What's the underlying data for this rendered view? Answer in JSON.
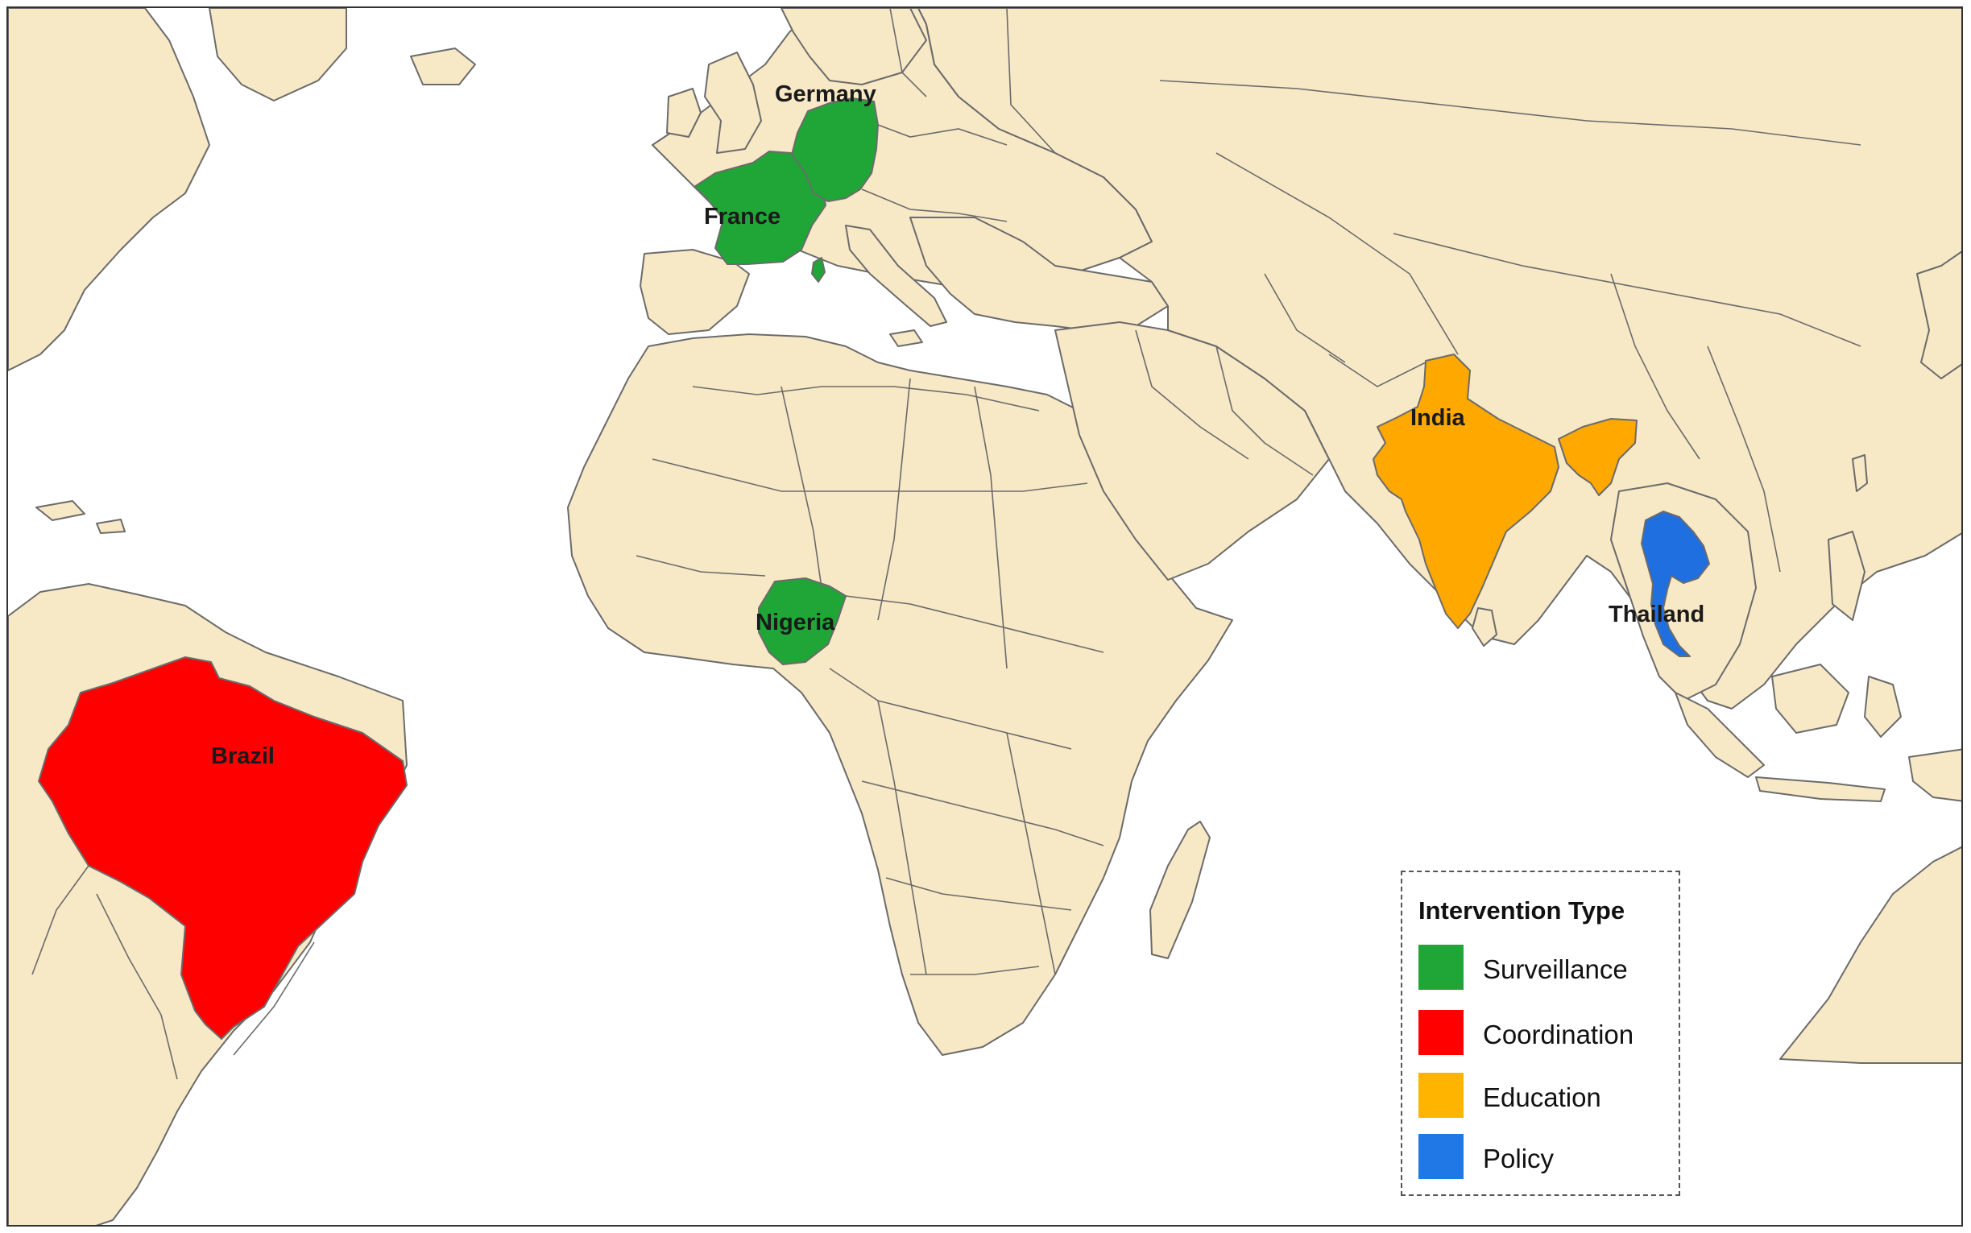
{
  "map": {
    "countries": [
      {
        "name": "Germany",
        "intervention": "Surveillance"
      },
      {
        "name": "France",
        "intervention": "Surveillance"
      },
      {
        "name": "Nigeria",
        "intervention": "Surveillance"
      },
      {
        "name": "Brazil",
        "intervention": "Coordination"
      },
      {
        "name": "India",
        "intervention": "Education"
      },
      {
        "name": "Thailand",
        "intervention": "Policy"
      }
    ],
    "colors": {
      "land": "#F7E8C6",
      "water": "#FFFFFF",
      "border": "#6B6B6B",
      "surveillance": "#1FA636",
      "coordination": "#FF0000",
      "education": "#FFA800",
      "policy": "#1F6FE0"
    }
  },
  "legend": {
    "title": "Intervention Type",
    "items": [
      {
        "label": "Surveillance",
        "color": "#1FA636"
      },
      {
        "label": "Coordination",
        "color": "#FF0000"
      },
      {
        "label": "Education",
        "color": "#FFB400"
      },
      {
        "label": "Policy",
        "color": "#1F78E6"
      }
    ]
  }
}
